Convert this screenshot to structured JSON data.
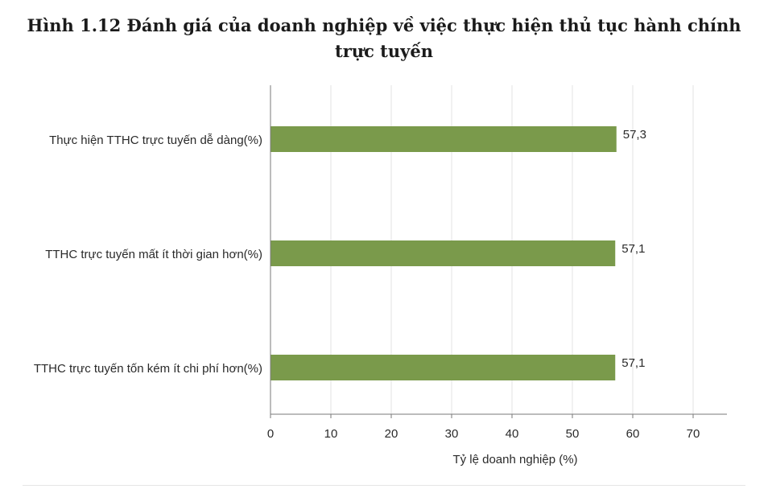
{
  "chart_data": {
    "type": "bar",
    "orientation": "horizontal",
    "title_lines": [
      "Hình 1.12 Đánh giá của doanh nghiệp về việc thực hiện thủ tục hành chính",
      "trực tuyến"
    ],
    "categories": [
      "Thực hiện TTHC trực tuyến dễ dàng(%)",
      "TTHC trực tuyến mất ít thời gian hơn(%)",
      "TTHC trực tuyến tốn kém ít chi phí hơn(%)"
    ],
    "values": [
      57.3,
      57.1,
      57.1
    ],
    "data_labels": [
      "57,3",
      "57,1",
      "57,1"
    ],
    "xlabel": "Tỷ lệ doanh nghiệp (%)",
    "ylabel": "",
    "xlim": [
      0,
      76
    ],
    "xticks": [
      0,
      10,
      20,
      30,
      40,
      50,
      60,
      70
    ],
    "grid": true,
    "bar_color": "#7a9a4b",
    "grid_color": "#e3e3e3",
    "axis_color": "#7a7a7a"
  }
}
